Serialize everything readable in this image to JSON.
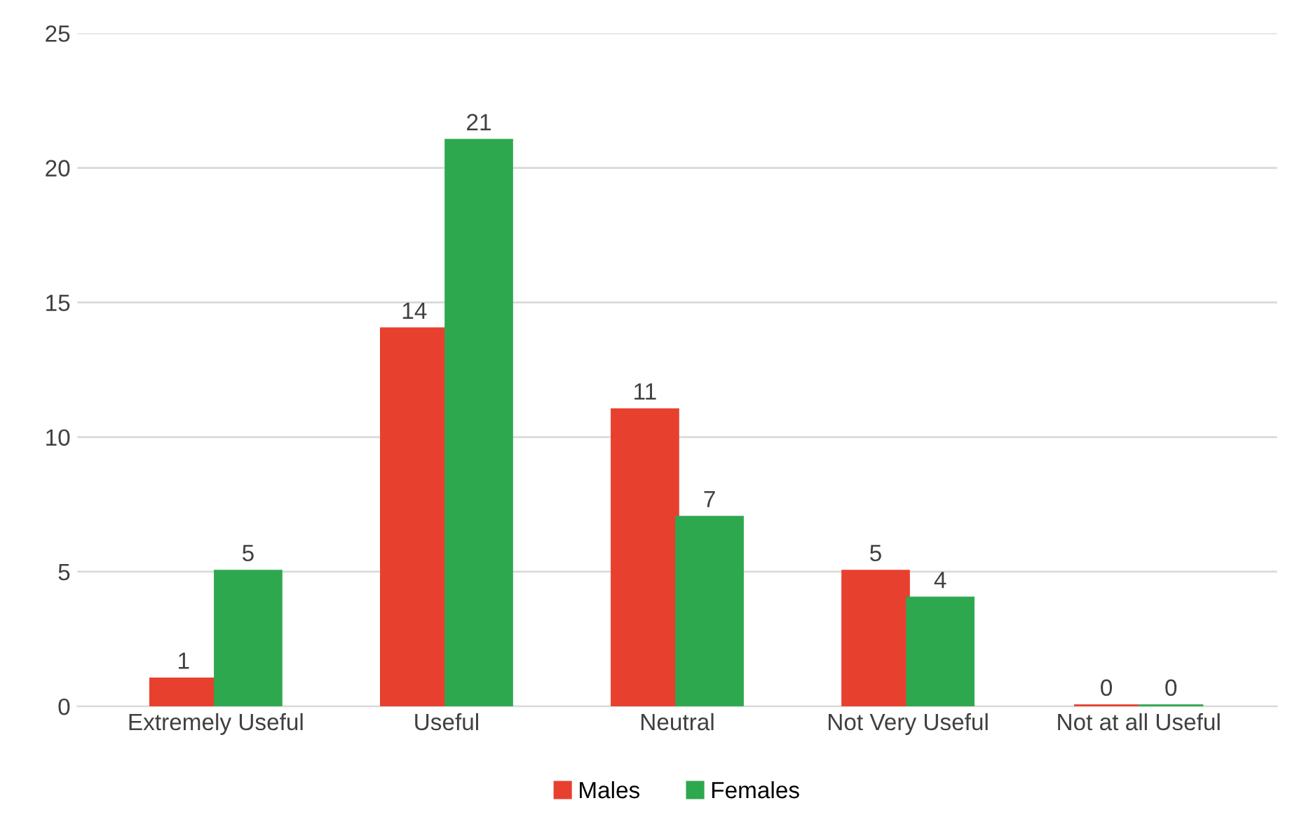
{
  "chart_data": {
    "type": "bar",
    "categories": [
      "Extremely Useful",
      "Useful",
      "Neutral",
      "Not Very Useful",
      "Not at all Useful"
    ],
    "series": [
      {
        "name": "Males",
        "color": "#e8402f",
        "values": [
          1,
          14,
          11,
          5,
          0
        ]
      },
      {
        "name": "Females",
        "color": "#2ea84f",
        "values": [
          5,
          21,
          7,
          4,
          0
        ]
      }
    ],
    "ylim": [
      0,
      25
    ],
    "yticks": [
      0,
      5,
      10,
      15,
      20,
      25
    ],
    "grid": "y",
    "legend": "bottom",
    "data_labels": true
  }
}
